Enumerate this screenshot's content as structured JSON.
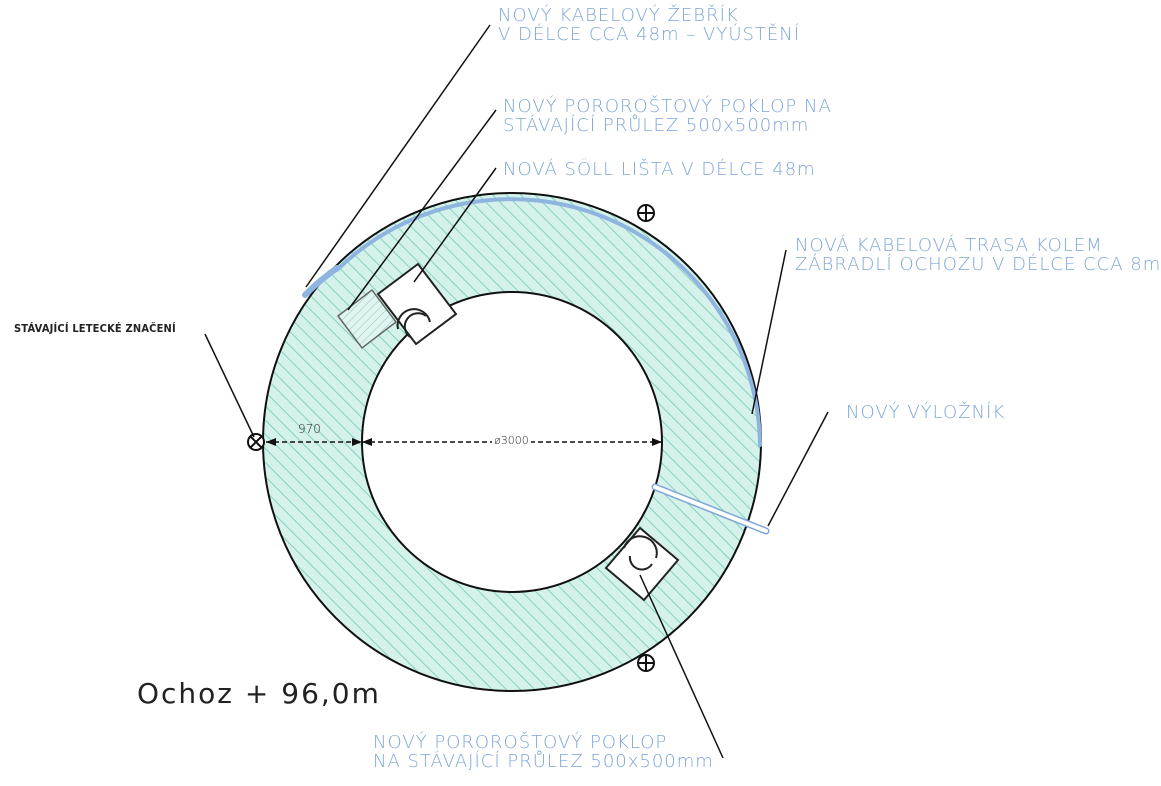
{
  "diagram": {
    "labels": {
      "cable_ladder": {
        "line1": "NOVÝ KABELOVÝ ŽEBŘÍK",
        "line2": "V DÉLCE CCA 48m – VYÚSTĚNÍ"
      },
      "grating_cover_top": {
        "line1": "NOVÝ POROROŠTOVÝ POKLOP NA",
        "line2": "STÁVAJÍCÍ PRŮLEZ 500x500mm"
      },
      "soll_rail": {
        "line1": "NOVÁ SÖLL LIŠTA V DÉLCE 48m"
      },
      "cable_route": {
        "line1": "NOVÁ KABELOVÁ TRASA KOLEM",
        "line2": "ZÁBRADLÍ OCHOZU V DÉLCE CCA 8m"
      },
      "aviation_marking": {
        "line1": "STÁVAJÍCÍ LETECKÉ ZNAČENÍ"
      },
      "boom": {
        "line1": "NOVÝ VÝLOŽNÍK"
      },
      "grating_cover_bottom": {
        "line1": "NOVÝ POROROŠTOVÝ POKLOP",
        "line2": "NA STÁVAJÍCÍ PRŮLEZ 500x500mm"
      }
    },
    "dimensions": {
      "ring_width": "970",
      "inner_diameter": "ø3000"
    },
    "level_title": "Ochoz + 96,0m",
    "colors": {
      "annotation_blue": "#7ea6d8",
      "hatch_fill": "#c9eee6",
      "hatch_line": "#7fcfb9",
      "line_black": "#1a1a1a"
    }
  }
}
